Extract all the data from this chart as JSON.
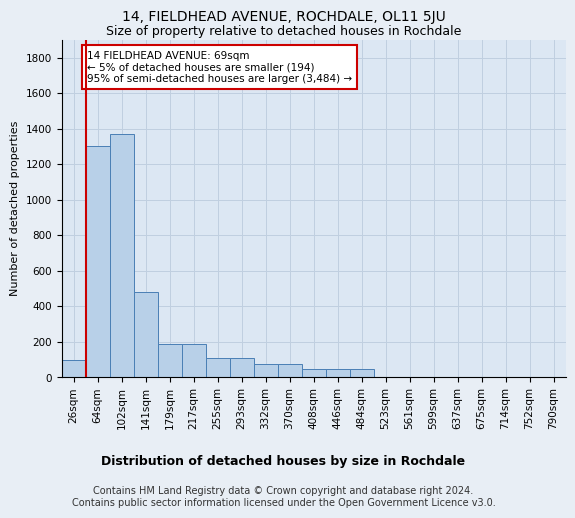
{
  "title": "14, FIELDHEAD AVENUE, ROCHDALE, OL11 5JU",
  "subtitle": "Size of property relative to detached houses in Rochdale",
  "xlabel": "Distribution of detached houses by size in Rochdale",
  "ylabel": "Number of detached properties",
  "categories": [
    "26sqm",
    "64sqm",
    "102sqm",
    "141sqm",
    "179sqm",
    "217sqm",
    "255sqm",
    "293sqm",
    "332sqm",
    "370sqm",
    "408sqm",
    "446sqm",
    "484sqm",
    "523sqm",
    "561sqm",
    "599sqm",
    "637sqm",
    "675sqm",
    "714sqm",
    "752sqm",
    "790sqm"
  ],
  "values": [
    100,
    1305,
    1370,
    480,
    190,
    190,
    110,
    110,
    75,
    75,
    50,
    50,
    50,
    0,
    0,
    0,
    0,
    0,
    0,
    0,
    0
  ],
  "bar_color": "#b8d0e8",
  "bar_edge_color": "#4a7fb5",
  "vline_x": 0.5,
  "vline_color": "#cc0000",
  "annotation_text": "14 FIELDHEAD AVENUE: 69sqm\n← 5% of detached houses are smaller (194)\n95% of semi-detached houses are larger (3,484) →",
  "annotation_box_color": "white",
  "annotation_box_edge": "#cc0000",
  "ylim": [
    0,
    1900
  ],
  "yticks": [
    0,
    200,
    400,
    600,
    800,
    1000,
    1200,
    1400,
    1600,
    1800
  ],
  "bg_color": "#e8eef5",
  "plot_bg_color": "#dce7f3",
  "grid_color": "#c0cfe0",
  "footer": "Contains HM Land Registry data © Crown copyright and database right 2024.\nContains public sector information licensed under the Open Government Licence v3.0.",
  "title_fontsize": 10,
  "subtitle_fontsize": 9,
  "xlabel_fontsize": 9,
  "ylabel_fontsize": 8,
  "tick_fontsize": 7.5,
  "footer_fontsize": 7
}
